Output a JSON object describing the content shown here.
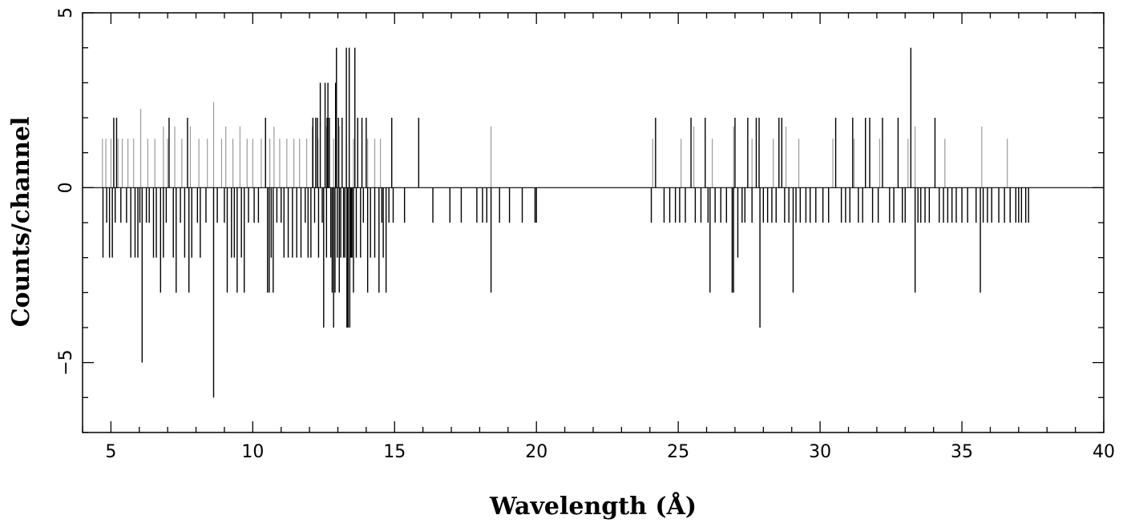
{
  "chart_data": {
    "type": "bar",
    "xlabel": "Wavelength (Å)",
    "ylabel": "Counts/channel",
    "xlim": [
      4,
      40
    ],
    "ylim": [
      -7,
      5
    ],
    "x_ticks": [
      5,
      10,
      15,
      20,
      25,
      30,
      35,
      40
    ],
    "y_ticks": [
      -5,
      0,
      5
    ],
    "grid": false,
    "colors": {
      "dark_series": "#000000",
      "light_series": "#9a9a9a",
      "zero_line": "#000000"
    },
    "series": [
      {
        "style": "dark",
        "points": [
          [
            4.72,
            -2
          ],
          [
            4.85,
            -1
          ],
          [
            4.95,
            -2
          ],
          [
            5.05,
            -2
          ],
          [
            5.1,
            2
          ],
          [
            5.15,
            -1
          ],
          [
            5.2,
            2
          ],
          [
            5.35,
            -1
          ],
          [
            5.55,
            -1
          ],
          [
            5.7,
            -2
          ],
          [
            5.85,
            -2
          ],
          [
            5.95,
            -2
          ],
          [
            6.02,
            -1
          ],
          [
            6.1,
            -5
          ],
          [
            6.25,
            -1
          ],
          [
            6.35,
            -1
          ],
          [
            6.5,
            -2
          ],
          [
            6.6,
            -2
          ],
          [
            6.75,
            -3
          ],
          [
            6.85,
            -2
          ],
          [
            6.95,
            -1
          ],
          [
            7.05,
            2
          ],
          [
            7.2,
            -2
          ],
          [
            7.3,
            -3
          ],
          [
            7.45,
            -1
          ],
          [
            7.6,
            -2
          ],
          [
            7.7,
            2
          ],
          [
            7.75,
            -3
          ],
          [
            7.85,
            -2
          ],
          [
            8.05,
            -1
          ],
          [
            8.15,
            -2
          ],
          [
            8.35,
            -1
          ],
          [
            8.62,
            -6
          ],
          [
            8.75,
            -1
          ],
          [
            9.0,
            -1
          ],
          [
            9.1,
            -3
          ],
          [
            9.25,
            -2
          ],
          [
            9.35,
            -2
          ],
          [
            9.45,
            -3
          ],
          [
            9.6,
            -2
          ],
          [
            9.7,
            -3
          ],
          [
            9.85,
            -1
          ],
          [
            10.05,
            -1
          ],
          [
            10.2,
            -1
          ],
          [
            10.45,
            2
          ],
          [
            10.52,
            -3
          ],
          [
            10.58,
            -3
          ],
          [
            10.65,
            -2
          ],
          [
            10.72,
            -3
          ],
          [
            10.85,
            -1
          ],
          [
            11.0,
            -1
          ],
          [
            11.1,
            -2
          ],
          [
            11.25,
            -2
          ],
          [
            11.4,
            -2
          ],
          [
            11.55,
            -2
          ],
          [
            11.7,
            -2
          ],
          [
            11.85,
            -1
          ],
          [
            11.95,
            -2
          ],
          [
            12.05,
            -2
          ],
          [
            12.12,
            2
          ],
          [
            12.18,
            -1
          ],
          [
            12.22,
            2
          ],
          [
            12.28,
            2
          ],
          [
            12.32,
            -2
          ],
          [
            12.38,
            3
          ],
          [
            12.45,
            -1
          ],
          [
            12.5,
            -4
          ],
          [
            12.55,
            3
          ],
          [
            12.6,
            -2
          ],
          [
            12.62,
            2
          ],
          [
            12.65,
            3
          ],
          [
            12.7,
            2
          ],
          [
            12.75,
            -2
          ],
          [
            12.8,
            -3
          ],
          [
            12.85,
            -4
          ],
          [
            12.9,
            -3
          ],
          [
            12.92,
            3
          ],
          [
            12.95,
            4
          ],
          [
            12.98,
            -2
          ],
          [
            13.02,
            2
          ],
          [
            13.05,
            -3
          ],
          [
            13.1,
            -2
          ],
          [
            13.15,
            2
          ],
          [
            13.2,
            -2
          ],
          [
            13.25,
            -2
          ],
          [
            13.3,
            4
          ],
          [
            13.32,
            -4
          ],
          [
            13.36,
            -4
          ],
          [
            13.4,
            4
          ],
          [
            13.42,
            -4
          ],
          [
            13.46,
            -2
          ],
          [
            13.5,
            -2
          ],
          [
            13.55,
            -3
          ],
          [
            13.6,
            4
          ],
          [
            13.65,
            -2
          ],
          [
            13.7,
            2
          ],
          [
            13.8,
            -2
          ],
          [
            13.85,
            2
          ],
          [
            13.9,
            -1
          ],
          [
            14.0,
            2
          ],
          [
            14.05,
            -3
          ],
          [
            14.15,
            -2
          ],
          [
            14.3,
            -2
          ],
          [
            14.45,
            -3
          ],
          [
            14.55,
            -1
          ],
          [
            14.6,
            -2
          ],
          [
            14.7,
            -3
          ],
          [
            14.8,
            -1
          ],
          [
            14.9,
            2
          ],
          [
            14.95,
            -1
          ],
          [
            15.35,
            -1
          ],
          [
            15.85,
            2
          ],
          [
            16.35,
            -1
          ],
          [
            16.95,
            -1
          ],
          [
            17.35,
            -1
          ],
          [
            17.9,
            -1
          ],
          [
            18.1,
            -1
          ],
          [
            18.25,
            -1
          ],
          [
            18.4,
            -3
          ],
          [
            18.7,
            -1
          ],
          [
            19.05,
            -1
          ],
          [
            19.5,
            -1
          ],
          [
            19.95,
            -1
          ],
          [
            20.0,
            -1
          ],
          [
            24.05,
            -1
          ],
          [
            24.2,
            2
          ],
          [
            24.5,
            -1
          ],
          [
            24.7,
            -1
          ],
          [
            24.9,
            -1
          ],
          [
            25.05,
            -1
          ],
          [
            25.25,
            -1
          ],
          [
            25.45,
            2
          ],
          [
            25.6,
            -1
          ],
          [
            25.8,
            -1
          ],
          [
            25.95,
            2
          ],
          [
            26.05,
            -1
          ],
          [
            26.12,
            -3
          ],
          [
            26.3,
            -1
          ],
          [
            26.5,
            -1
          ],
          [
            26.7,
            -1
          ],
          [
            26.9,
            -3
          ],
          [
            26.95,
            -3
          ],
          [
            27.0,
            2
          ],
          [
            27.1,
            -2
          ],
          [
            27.25,
            -1
          ],
          [
            27.35,
            -1
          ],
          [
            27.45,
            2
          ],
          [
            27.6,
            -1
          ],
          [
            27.75,
            2
          ],
          [
            27.85,
            2
          ],
          [
            27.88,
            -4
          ],
          [
            28.0,
            -1
          ],
          [
            28.15,
            -1
          ],
          [
            28.3,
            -1
          ],
          [
            28.45,
            -1
          ],
          [
            28.55,
            2
          ],
          [
            28.65,
            2
          ],
          [
            28.75,
            -1
          ],
          [
            28.9,
            -1
          ],
          [
            29.05,
            -3
          ],
          [
            29.15,
            -1
          ],
          [
            29.3,
            -1
          ],
          [
            29.5,
            -1
          ],
          [
            29.65,
            -1
          ],
          [
            29.85,
            -1
          ],
          [
            30.1,
            -1
          ],
          [
            30.3,
            -1
          ],
          [
            30.55,
            2
          ],
          [
            30.75,
            -1
          ],
          [
            30.9,
            -1
          ],
          [
            31.05,
            -1
          ],
          [
            31.15,
            2
          ],
          [
            31.35,
            -1
          ],
          [
            31.5,
            -1
          ],
          [
            31.6,
            2
          ],
          [
            31.75,
            2
          ],
          [
            31.85,
            -1
          ],
          [
            32.05,
            -1
          ],
          [
            32.2,
            2
          ],
          [
            32.45,
            -1
          ],
          [
            32.6,
            -1
          ],
          [
            32.75,
            2
          ],
          [
            32.9,
            -1
          ],
          [
            33.0,
            -1
          ],
          [
            33.2,
            4
          ],
          [
            33.35,
            -3
          ],
          [
            33.45,
            -1
          ],
          [
            33.55,
            -1
          ],
          [
            33.7,
            -1
          ],
          [
            33.85,
            -1
          ],
          [
            34.05,
            2
          ],
          [
            34.2,
            -1
          ],
          [
            34.35,
            -1
          ],
          [
            34.5,
            -1
          ],
          [
            34.65,
            -1
          ],
          [
            34.8,
            -1
          ],
          [
            35.0,
            -1
          ],
          [
            35.2,
            -1
          ],
          [
            35.5,
            -1
          ],
          [
            35.65,
            -3
          ],
          [
            35.75,
            -1
          ],
          [
            35.9,
            -1
          ],
          [
            36.05,
            -1
          ],
          [
            36.3,
            -1
          ],
          [
            36.5,
            -1
          ],
          [
            36.7,
            -1
          ],
          [
            36.9,
            -1
          ],
          [
            37.0,
            -1
          ],
          [
            37.1,
            -1
          ],
          [
            37.25,
            -1
          ],
          [
            37.35,
            -1
          ]
        ]
      },
      {
        "style": "light",
        "points": [
          [
            4.7,
            1.4
          ],
          [
            4.82,
            1.4
          ],
          [
            5.0,
            1.4
          ],
          [
            5.25,
            1.4
          ],
          [
            5.4,
            1.4
          ],
          [
            5.6,
            1.4
          ],
          [
            5.8,
            1.4
          ],
          [
            6.05,
            2.25
          ],
          [
            6.3,
            1.4
          ],
          [
            6.55,
            1.4
          ],
          [
            6.85,
            1.75
          ],
          [
            7.0,
            1.4
          ],
          [
            7.25,
            1.75
          ],
          [
            7.5,
            1.4
          ],
          [
            7.8,
            1.75
          ],
          [
            8.1,
            1.4
          ],
          [
            8.4,
            1.4
          ],
          [
            8.62,
            2.45
          ],
          [
            8.9,
            1.4
          ],
          [
            9.05,
            1.75
          ],
          [
            9.3,
            1.4
          ],
          [
            9.55,
            1.75
          ],
          [
            9.8,
            1.4
          ],
          [
            10.0,
            1.4
          ],
          [
            10.3,
            1.4
          ],
          [
            10.6,
            1.4
          ],
          [
            10.75,
            1.75
          ],
          [
            10.95,
            1.4
          ],
          [
            11.2,
            1.4
          ],
          [
            11.45,
            1.4
          ],
          [
            11.65,
            1.4
          ],
          [
            11.9,
            1.4
          ],
          [
            12.1,
            1.75
          ],
          [
            12.3,
            1.4
          ],
          [
            12.6,
            1.75
          ],
          [
            12.85,
            1.4
          ],
          [
            13.05,
            1.75
          ],
          [
            13.3,
            1.4
          ],
          [
            13.55,
            1.4
          ],
          [
            13.85,
            1.75
          ],
          [
            14.05,
            1.4
          ],
          [
            14.3,
            1.4
          ],
          [
            14.5,
            1.4
          ],
          [
            18.4,
            1.75
          ],
          [
            24.1,
            1.4
          ],
          [
            25.1,
            1.4
          ],
          [
            25.55,
            1.75
          ],
          [
            26.2,
            1.4
          ],
          [
            26.95,
            1.75
          ],
          [
            27.6,
            1.4
          ],
          [
            28.35,
            1.4
          ],
          [
            28.8,
            1.75
          ],
          [
            29.25,
            1.4
          ],
          [
            30.45,
            1.4
          ],
          [
            31.2,
            1.4
          ],
          [
            32.1,
            1.4
          ],
          [
            33.1,
            1.4
          ],
          [
            33.35,
            1.75
          ],
          [
            34.4,
            1.4
          ],
          [
            35.7,
            1.75
          ],
          [
            36.6,
            1.4
          ]
        ]
      }
    ]
  }
}
